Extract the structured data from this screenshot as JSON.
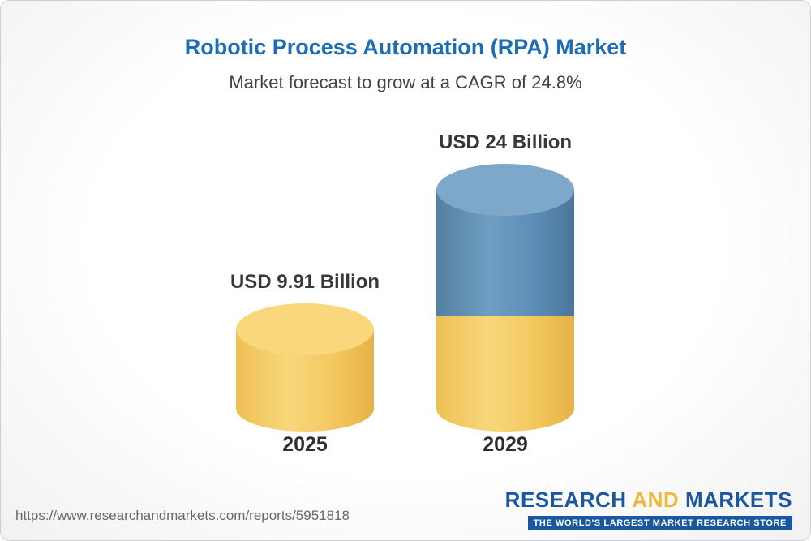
{
  "header": {
    "title": "Robotic Process Automation (RPA) Market",
    "subtitle": "Market forecast to grow at a CAGR of 24.8%"
  },
  "chart_data": {
    "type": "bar",
    "title": "Robotic Process Automation (RPA) Market",
    "subtitle": "Market forecast to grow at a CAGR of 24.8%",
    "cagr_percent": 24.8,
    "unit": "USD Billion",
    "categories": [
      "2025",
      "2029"
    ],
    "values": [
      9.91,
      24
    ],
    "value_labels": [
      "USD 9.91 Billion",
      "USD 24 Billion"
    ],
    "grid": false,
    "legend_position": "none",
    "colors": {
      "bar_2025": "#f3c75f",
      "bar_2029_growth_segment": "#5e8eb7",
      "bar_2029_base_segment": "#f3c75f",
      "title_blue": "#1d6db6"
    }
  },
  "footer": {
    "source_url": "https://www.researchandmarkets.com/reports/5951818",
    "logo": {
      "word_research": "RESEARCH",
      "word_and": "AND",
      "word_markets": "MARKETS",
      "tagline": "THE WORLD'S LARGEST MARKET RESEARCH STORE"
    }
  }
}
